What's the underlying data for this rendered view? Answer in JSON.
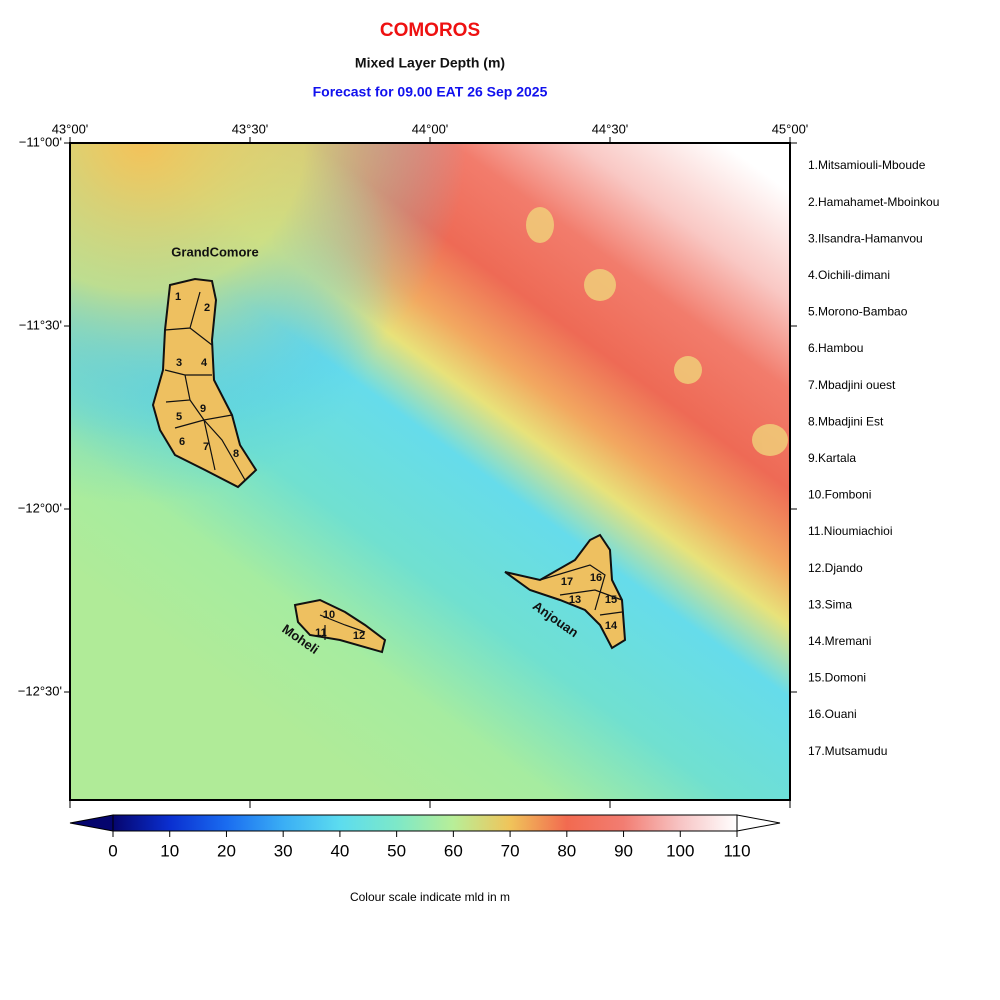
{
  "title": "COMOROS",
  "subtitle": "Mixed Layer Depth (m)",
  "forecast": "Forecast for  09.00 EAT 26 Sep 2025",
  "lon_labels": [
    "43°00'",
    "43°30'",
    "44°00'",
    "44°30'",
    "45°00'"
  ],
  "lat_labels": [
    "−11°00'",
    "−11°30'",
    "−12°00'",
    "−12°30'"
  ],
  "islands": [
    "GrandComore",
    "Moheli",
    "Anjouan"
  ],
  "region_numbers": [
    "1",
    "2",
    "3",
    "4",
    "5",
    "6",
    "7",
    "8",
    "9",
    "10",
    "11",
    "12",
    "13",
    "14",
    "15",
    "16",
    "17"
  ],
  "regions": [
    "1.Mitsamiouli-Mboude",
    "2.Hamahamet-Mboinkou",
    "3.Ilsandra-Hamanvou",
    "4.Oichili-dimani",
    "5.Morono-Bambao",
    "6.Hambou",
    "7.Mbadjini ouest",
    "8.Mbadjini Est",
    "9.Kartala",
    "10.Fomboni",
    "11.Nioumiachioi",
    "12.Djando",
    "13.Sima",
    "14.Mremani",
    "15.Domoni",
    "16.Ouani",
    "17.Mutsamudu"
  ],
  "colorbar": {
    "lim": [
      0,
      110
    ],
    "ticks": [
      0,
      10,
      20,
      30,
      40,
      50,
      60,
      70,
      80,
      90,
      100,
      110
    ],
    "colors": [
      "#05056e",
      "#0a2fd0",
      "#1a6cf0",
      "#3aaef5",
      "#5cdcef",
      "#7de8c8",
      "#b8ee98",
      "#f0c45a",
      "#f26a50",
      "#f27d72",
      "#f7c4c4",
      "#ffffff"
    ],
    "caption": "Colour scale indicate mld in m"
  }
}
